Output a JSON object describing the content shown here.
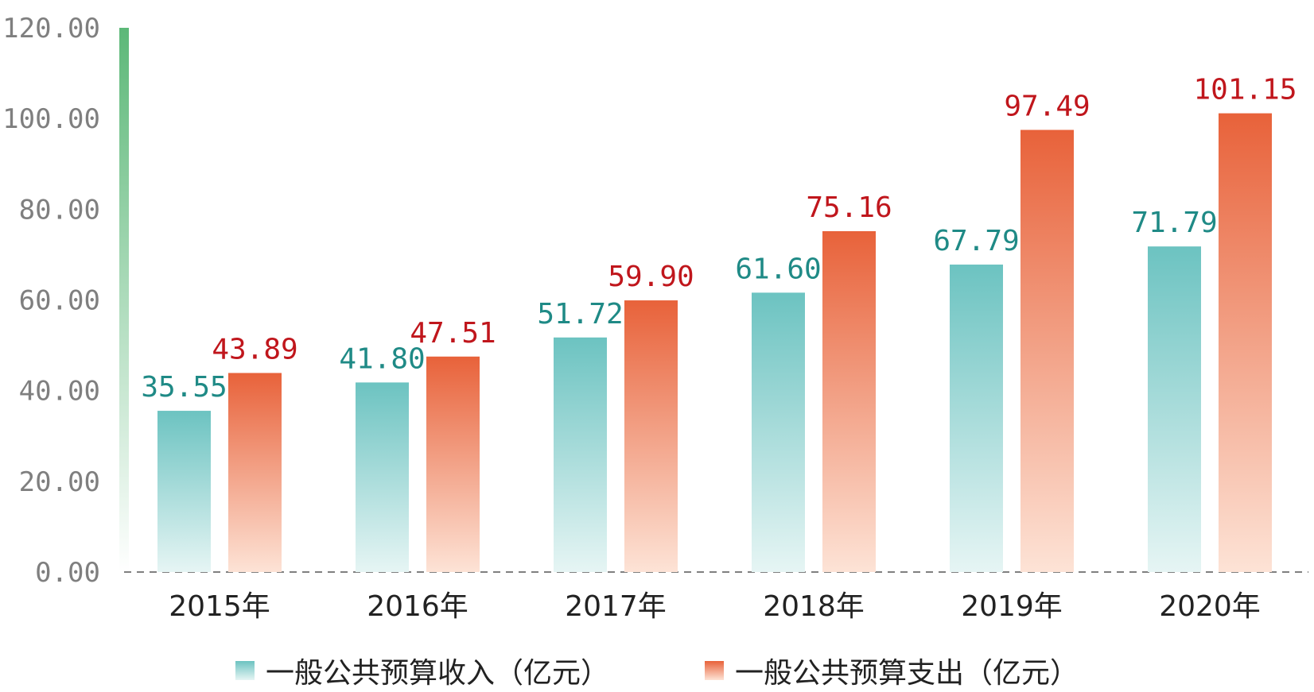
{
  "chart_data": {
    "type": "bar",
    "categories": [
      "2015年",
      "2016年",
      "2017年",
      "2018年",
      "2019年",
      "2020年"
    ],
    "series": [
      {
        "name": "一般公共预算收入（亿元）",
        "values": [
          35.55,
          41.8,
          51.72,
          61.6,
          67.79,
          71.79
        ],
        "labels": [
          "35.55",
          "41.80",
          "51.72",
          "61.60",
          "67.79",
          "71.79"
        ],
        "color_top": "#6cc3c1",
        "color_bottom": "#e6f5f4",
        "label_color": "#1f8a86"
      },
      {
        "name": "一般公共预算支出（亿元）",
        "values": [
          43.89,
          47.51,
          59.9,
          75.16,
          97.49,
          101.15
        ],
        "labels": [
          "43.89",
          "47.51",
          "59.90",
          "75.16",
          "97.49",
          "101.15"
        ],
        "color_top": "#e8623a",
        "color_bottom": "#fde3d6",
        "label_color": "#c0161c"
      }
    ],
    "y_ticks": [
      "0.00",
      "20.00",
      "40.00",
      "60.00",
      "80.00",
      "100.00",
      "120.00"
    ],
    "ylim": [
      0,
      120
    ],
    "grid": false,
    "legend_position": "bottom",
    "axis_color": "#5cb878"
  }
}
